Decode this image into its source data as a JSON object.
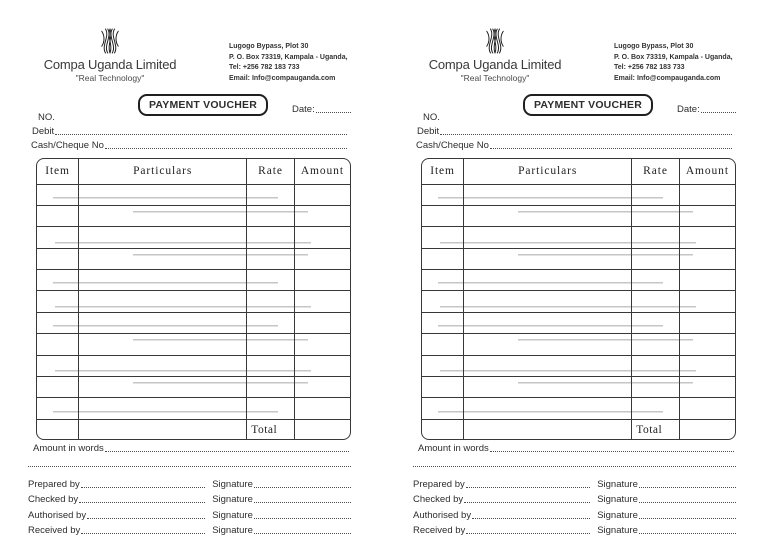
{
  "document": {
    "company": {
      "name": "Compa Uganda Limited",
      "tagline": "\"Real Technology\"",
      "address": [
        "Lugogo Bypass, Plot 30",
        "P. O. Box 73319, Kampala - Uganda,",
        "Tel: +256 782 183 733",
        "Email: Info@compauganda.com"
      ]
    },
    "voucher_title": "PAYMENT VOUCHER",
    "labels": {
      "date": "Date:",
      "number": "NO.",
      "debit": "Debit",
      "cash_cheque": "Cash/Cheque No",
      "amount_in_words": "Amount in words",
      "total": "Total",
      "signature": "Signature"
    },
    "table": {
      "columns": [
        "Item",
        "Particulars",
        "Rate",
        "Amount"
      ],
      "empty_rows": 11,
      "row_values": []
    },
    "approval_lines": [
      "Prepared by",
      "Checked by",
      "Authorised by",
      "Received by"
    ],
    "copies": 2
  },
  "colors": {
    "background": "#ffffff",
    "ink": "#2d2d2d",
    "table_line": "#383838",
    "faint_scan_line": "#c6c6c6"
  }
}
